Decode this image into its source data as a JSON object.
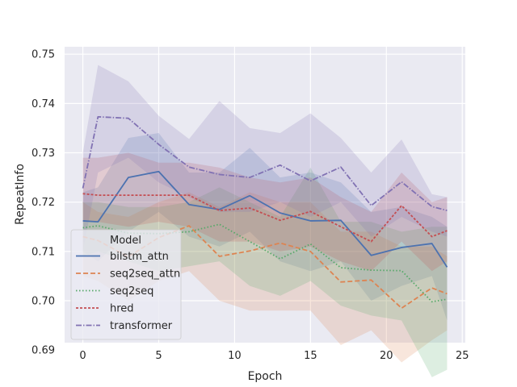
{
  "chart_data": {
    "type": "line",
    "title": "",
    "xlabel": "Epoch",
    "ylabel": "RepeatInfo",
    "xlim": [
      -1.2,
      25.2
    ],
    "ylim": [
      0.6915,
      0.7515
    ],
    "xticks": [
      0,
      5,
      10,
      15,
      20,
      25
    ],
    "yticks": [
      0.69,
      0.7,
      0.71,
      0.72,
      0.73,
      0.74,
      0.75
    ],
    "ytick_labels": [
      "0.69",
      "0.70",
      "0.71",
      "0.72",
      "0.73",
      "0.74",
      "0.75"
    ],
    "grid": true,
    "legend": {
      "title": "Model",
      "position": "bottom-left"
    },
    "x": [
      0,
      1,
      3,
      5,
      7,
      9,
      11,
      13,
      15,
      17,
      19,
      21,
      23,
      24
    ],
    "series": [
      {
        "name": "bilstm_attn",
        "color": "#4c72b0",
        "dash": "solid",
        "values": [
          0.7162,
          0.716,
          0.725,
          0.7262,
          0.7195,
          0.7185,
          0.7213,
          0.7178,
          0.7162,
          0.7163,
          0.7092,
          0.7108,
          0.7116,
          0.7068
        ],
        "lower": [
          0.71,
          0.708,
          0.714,
          0.718,
          0.713,
          0.711,
          0.714,
          0.708,
          0.706,
          0.708,
          0.7,
          0.703,
          0.705,
          0.696
        ],
        "upper": [
          0.722,
          0.723,
          0.733,
          0.734,
          0.726,
          0.726,
          0.731,
          0.725,
          0.726,
          0.724,
          0.718,
          0.719,
          0.717,
          0.715
        ]
      },
      {
        "name": "seq2seq_attn",
        "color": "#dd8452",
        "dash": "6,3",
        "values": [
          0.713,
          0.7122,
          0.7089,
          0.7128,
          0.7152,
          0.709,
          0.7101,
          0.7117,
          0.71,
          0.7038,
          0.7042,
          0.6985,
          0.7026,
          0.7014
        ],
        "lower": [
          0.705,
          0.704,
          0.7,
          0.704,
          0.706,
          0.7,
          0.698,
          0.698,
          0.698,
          0.691,
          0.694,
          0.6875,
          0.692,
          0.694
        ],
        "upper": [
          0.72,
          0.718,
          0.717,
          0.72,
          0.722,
          0.719,
          0.722,
          0.72,
          0.72,
          0.714,
          0.714,
          0.711,
          0.711,
          0.709
        ]
      },
      {
        "name": "seq2seq",
        "color": "#55a868",
        "dash": "1.5,2.5",
        "values": [
          0.7148,
          0.7152,
          0.7137,
          0.7136,
          0.714,
          0.7155,
          0.712,
          0.7085,
          0.7115,
          0.7067,
          0.7062,
          0.7061,
          0.6998,
          0.7003
        ],
        "lower": [
          0.709,
          0.71,
          0.708,
          0.706,
          0.707,
          0.708,
          0.703,
          0.701,
          0.704,
          0.699,
          0.697,
          0.696,
          0.6845,
          0.686
        ],
        "upper": [
          0.72,
          0.72,
          0.719,
          0.719,
          0.72,
          0.723,
          0.72,
          0.717,
          0.727,
          0.716,
          0.716,
          0.714,
          0.715,
          0.715
        ]
      },
      {
        "name": "hred",
        "color": "#c44e52",
        "dash": "3,2",
        "values": [
          0.7217,
          0.7214,
          0.7214,
          0.7214,
          0.7214,
          0.7183,
          0.7188,
          0.7163,
          0.7181,
          0.715,
          0.712,
          0.7193,
          0.713,
          0.7142
        ],
        "lower": [
          0.716,
          0.716,
          0.715,
          0.716,
          0.715,
          0.712,
          0.712,
          0.71,
          0.711,
          0.708,
          0.706,
          0.712,
          0.706,
          0.708
        ],
        "upper": [
          0.729,
          0.729,
          0.73,
          0.728,
          0.728,
          0.727,
          0.725,
          0.724,
          0.725,
          0.721,
          0.718,
          0.726,
          0.72,
          0.721
        ]
      },
      {
        "name": "transformer",
        "color": "#8172b3",
        "dash": "7,2,1.5,2",
        "values": [
          0.7228,
          0.7373,
          0.737,
          0.7317,
          0.7271,
          0.7256,
          0.725,
          0.7275,
          0.7243,
          0.7271,
          0.7193,
          0.7241,
          0.7191,
          0.7183
        ],
        "lower": [
          0.71,
          0.726,
          0.729,
          0.724,
          0.721,
          0.718,
          0.718,
          0.72,
          0.717,
          0.72,
          0.713,
          0.717,
          0.714,
          0.713
        ],
        "upper": [
          0.73,
          0.7478,
          0.7445,
          0.7375,
          0.7328,
          0.7405,
          0.735,
          0.734,
          0.738,
          0.733,
          0.726,
          0.7327,
          0.7216,
          0.721
        ]
      }
    ]
  }
}
